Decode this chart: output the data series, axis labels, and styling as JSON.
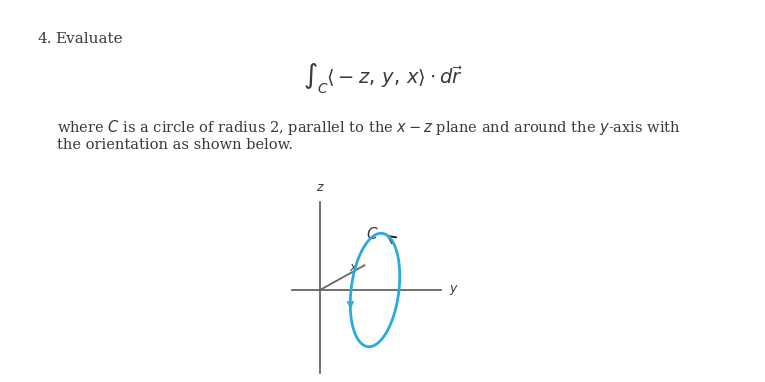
{
  "title_number": "4.",
  "title_text": "Evaluate",
  "formula": "$\\int_C \\langle -z, y, x \\rangle \\cdot d\\vec{r}$",
  "description_line1": "where $C$ is a circle of radius 2, parallel to the $x - z$ plane and around the $y$-axis with",
  "description_line2": "the orientation as shown below.",
  "bg_color": "#ffffff",
  "text_color": "#3a3a3a",
  "axis_color": "#666666",
  "circle_color": "#29abe2",
  "arrow_color": "#222222",
  "arrow_blue_color": "#29abe2"
}
